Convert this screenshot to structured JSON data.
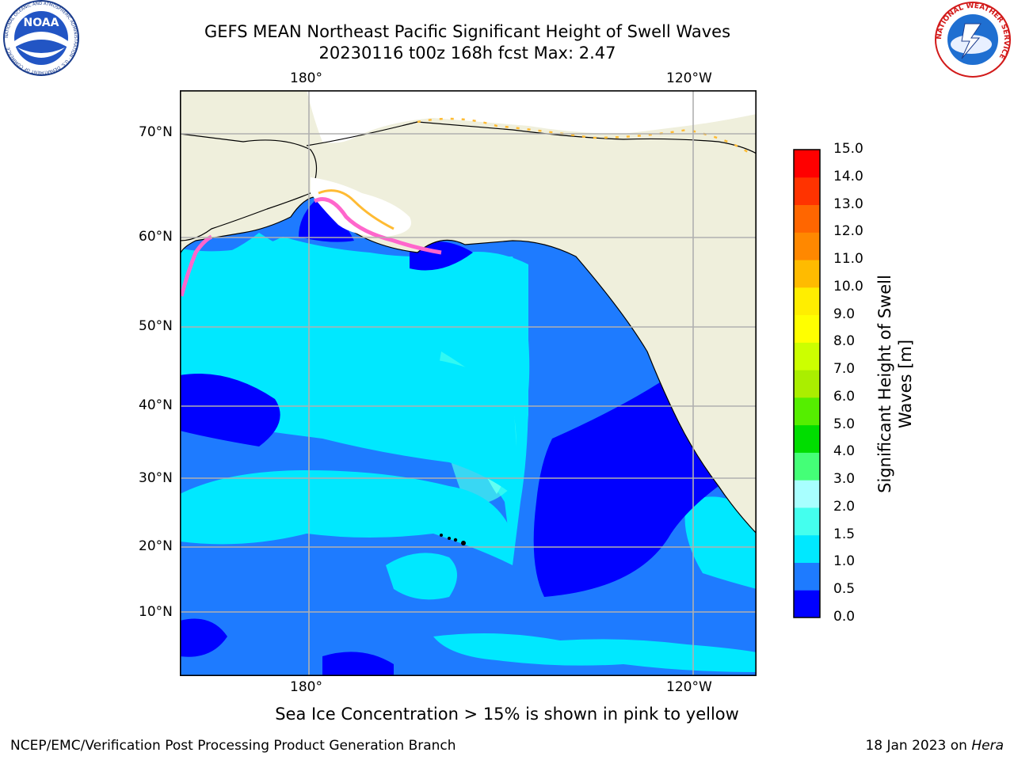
{
  "title": {
    "line1": "GEFS MEAN Northeast Pacific Significant Height of Swell Waves",
    "line2": "20230116 t00z 168h fcst   Max: 2.47"
  },
  "logos": {
    "left": "NOAA",
    "left_ring": "NATIONAL OCEANIC AND ATMOSPHERIC ADMINISTRATION · U.S. DEPARTMENT OF COMMERCE",
    "right_ring": "NATIONAL WEATHER SERVICE"
  },
  "map": {
    "lon_labels": [
      "180°",
      "120°W"
    ],
    "lat_labels": [
      "70°N",
      "60°N",
      "50°N",
      "40°N",
      "30°N",
      "20°N",
      "10°N"
    ],
    "colors": {
      "land": "#efefdc",
      "frame": "#000000",
      "grid": "#b0b0b0",
      "ice_missing": "#ffffff"
    }
  },
  "colorbar": {
    "title": "Significant Height of Swell Waves [m]",
    "ticks": [
      "0.0",
      "0.5",
      "1.0",
      "1.5",
      "2.0",
      "3.0",
      "4.0",
      "5.0",
      "6.0",
      "7.0",
      "8.0",
      "9.0",
      "10.0",
      "11.0",
      "12.0",
      "13.0",
      "14.0",
      "15.0"
    ],
    "colors": [
      "#0000ff",
      "#1e7bff",
      "#00e8ff",
      "#44ffee",
      "#a8ffff",
      "#44ff77",
      "#00dd00",
      "#55ee00",
      "#aaee00",
      "#ccff00",
      "#ffff00",
      "#ffee00",
      "#ffbb00",
      "#ff8800",
      "#ff6600",
      "#ff3300",
      "#ff0000"
    ]
  },
  "ice_note": "Sea Ice Concentration > 15% is shown in pink to yellow",
  "footer": {
    "left": "NCEP/EMC/Verification Post Processing Product Generation Branch",
    "right_prefix": "18 Jan 2023 on ",
    "right_host": "Hera"
  }
}
